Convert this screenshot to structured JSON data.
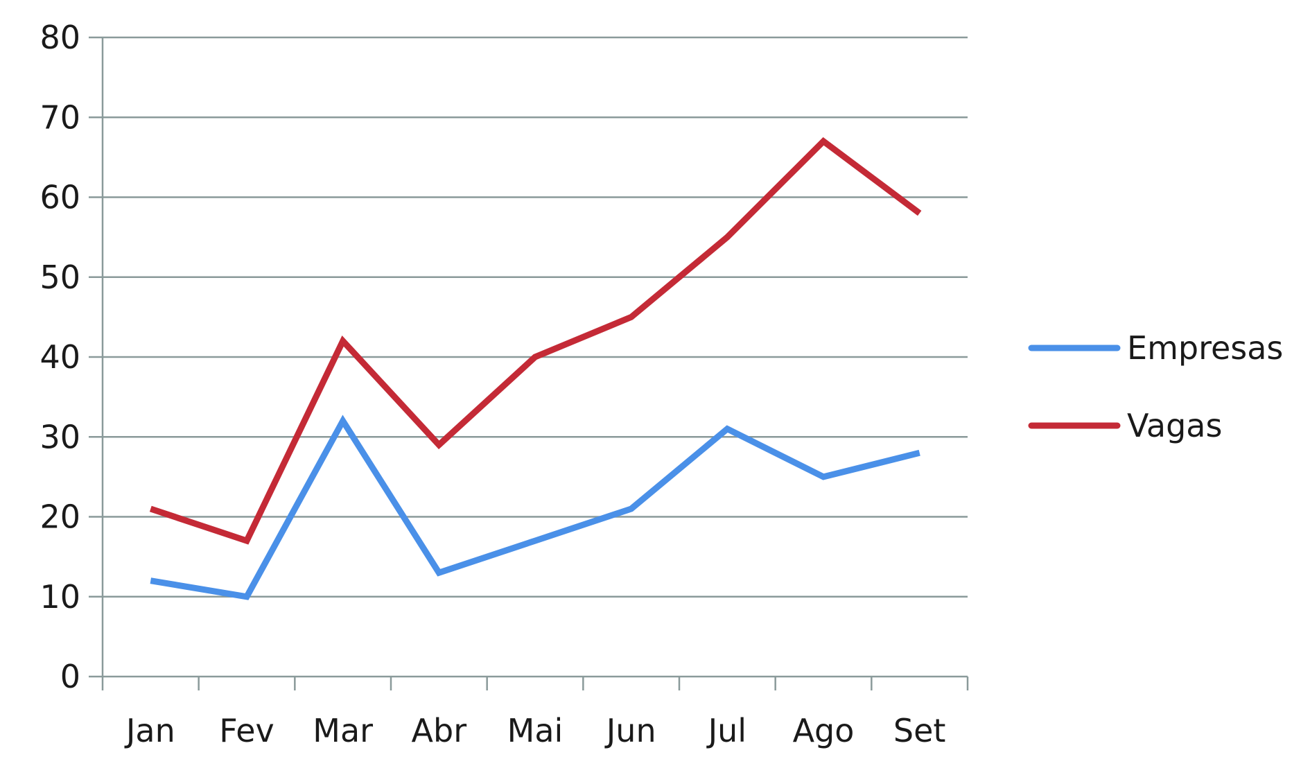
{
  "chart_data": {
    "type": "line",
    "categories": [
      "Jan",
      "Fev",
      "Mar",
      "Abr",
      "Mai",
      "Jun",
      "Jul",
      "Ago",
      "Set"
    ],
    "series": [
      {
        "name": "Empresas",
        "color": "#4a90e8",
        "values": [
          12,
          10,
          32,
          13,
          17,
          21,
          31,
          25,
          28
        ]
      },
      {
        "name": "Vagas",
        "color": "#c42a36",
        "values": [
          21,
          17,
          42,
          29,
          40,
          45,
          55,
          67,
          58
        ]
      }
    ],
    "ylim": [
      0,
      80
    ],
    "yticks": [
      0,
      10,
      20,
      30,
      40,
      50,
      60,
      70,
      80
    ],
    "grid": true,
    "legend_position": "right"
  }
}
